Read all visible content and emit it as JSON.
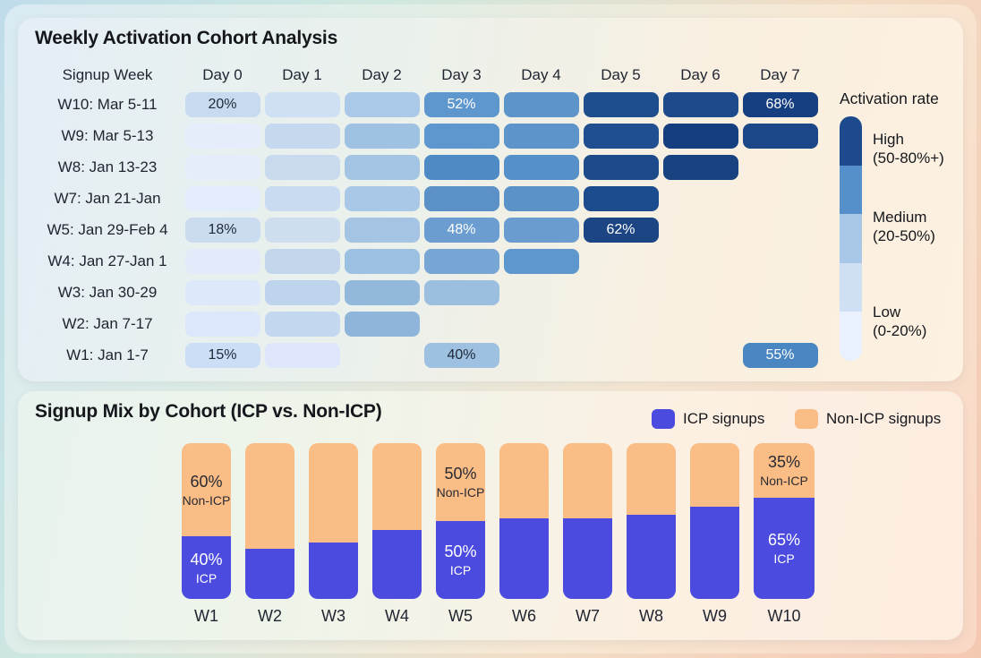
{
  "activation": {
    "title": "Weekly Activation Cohort Analysis",
    "columns": [
      "Signup Week",
      "Day 0",
      "Day 1",
      "Day 2",
      "Day 3",
      "Day 4",
      "Day 5",
      "Day 6",
      "Day 7"
    ],
    "rows": [
      {
        "label": "W10: Mar 5-11",
        "cells": [
          {
            "day": 0,
            "color": "#c8daf0",
            "label": "20%",
            "text": "#1f2937"
          },
          {
            "day": 1,
            "color": "#cfdff4",
            "label": ""
          },
          {
            "day": 2,
            "color": "#aac8e7",
            "label": ""
          },
          {
            "day": 3,
            "color": "#5e97cd",
            "label": "52%",
            "text": "#ffffff"
          },
          {
            "day": 4,
            "color": "#5d94c9",
            "label": ""
          },
          {
            "day": 5,
            "color": "#1e4e8e",
            "label": ""
          },
          {
            "day": 6,
            "color": "#1c4a8b",
            "label": ""
          },
          {
            "day": 7,
            "color": "#153f80",
            "label": "68%",
            "text": "#ffffff"
          }
        ]
      },
      {
        "label": "W9: Mar 5-13",
        "cells": [
          {
            "day": 0,
            "color": "#e5edfb",
            "label": ""
          },
          {
            "day": 1,
            "color": "#c6d8ee",
            "label": ""
          },
          {
            "day": 2,
            "color": "#9fc2e3",
            "label": ""
          },
          {
            "day": 3,
            "color": "#5e97cd",
            "label": ""
          },
          {
            "day": 4,
            "color": "#5d95ca",
            "label": ""
          },
          {
            "day": 5,
            "color": "#1f4f90",
            "label": ""
          },
          {
            "day": 6,
            "color": "#153e80",
            "label": ""
          },
          {
            "day": 7,
            "color": "#1b4789",
            "label": ""
          }
        ]
      },
      {
        "label": "W8: Jan 13-23",
        "cells": [
          {
            "day": 0,
            "color": "#e5edfb",
            "label": ""
          },
          {
            "day": 1,
            "color": "#c9daee",
            "label": ""
          },
          {
            "day": 2,
            "color": "#a3c4e3",
            "label": ""
          },
          {
            "day": 3,
            "color": "#4e8ac4",
            "label": ""
          },
          {
            "day": 4,
            "color": "#5590c8",
            "label": ""
          },
          {
            "day": 5,
            "color": "#1c4a8b",
            "label": ""
          },
          {
            "day": 6,
            "color": "#17427f",
            "label": ""
          }
        ]
      },
      {
        "label": "W7: Jan 21-Jan",
        "cells": [
          {
            "day": 0,
            "color": "#e3ecfa",
            "label": ""
          },
          {
            "day": 1,
            "color": "#c9dbf0",
            "label": ""
          },
          {
            "day": 2,
            "color": "#a9c7e6",
            "label": ""
          },
          {
            "day": 3,
            "color": "#5b91c6",
            "label": ""
          },
          {
            "day": 4,
            "color": "#5b93c8",
            "label": ""
          },
          {
            "day": 5,
            "color": "#1d4c8e",
            "label": ""
          }
        ]
      },
      {
        "label": "W5: Jan 29-Feb 4",
        "cells": [
          {
            "day": 0,
            "color": "#ccdcf0",
            "label": "18%",
            "text": "#1f2937"
          },
          {
            "day": 1,
            "color": "#cfdeef",
            "label": ""
          },
          {
            "day": 2,
            "color": "#a5c3e2",
            "label": ""
          },
          {
            "day": 3,
            "color": "#6b9dd1",
            "label": "48%",
            "text": "#ffffff"
          },
          {
            "day": 4,
            "color": "#6b9cd0",
            "label": ""
          },
          {
            "day": 5,
            "color": "#1b4583",
            "label": "62%",
            "text": "#ffffff"
          }
        ]
      },
      {
        "label": "W4: Jan 27-Jan 1",
        "cells": [
          {
            "day": 0,
            "color": "#e3ebfb",
            "label": ""
          },
          {
            "day": 1,
            "color": "#c3d6ec",
            "label": ""
          },
          {
            "day": 2,
            "color": "#9cc0e2",
            "label": ""
          },
          {
            "day": 3,
            "color": "#77a6d4",
            "label": ""
          },
          {
            "day": 4,
            "color": "#5e97cd",
            "label": ""
          }
        ]
      },
      {
        "label": "W3: Jan 30-29",
        "cells": [
          {
            "day": 0,
            "color": "#dde8fb",
            "label": ""
          },
          {
            "day": 1,
            "color": "#bed4ec",
            "label": ""
          },
          {
            "day": 2,
            "color": "#92b8dc",
            "label": ""
          },
          {
            "day": 3,
            "color": "#9cbfe0",
            "label": ""
          }
        ]
      },
      {
        "label": "W2: Jan 7-17",
        "cells": [
          {
            "day": 0,
            "color": "#dce7fb",
            "label": ""
          },
          {
            "day": 1,
            "color": "#c3d7ee",
            "label": ""
          },
          {
            "day": 2,
            "color": "#8fb6da",
            "label": ""
          }
        ]
      },
      {
        "label": "W1: Jan 1-7",
        "cells": [
          {
            "day": 0,
            "color": "#ccddf6",
            "label": "15%",
            "text": "#1f2937"
          },
          {
            "day": 1,
            "color": "#dde6fb",
            "label": ""
          },
          {
            "day": 3,
            "color": "#9ec0e1",
            "label": "40%",
            "text": "#1f2937"
          },
          {
            "day": 7,
            "color": "#4a86c2",
            "label": "55%",
            "text": "#ffffff"
          }
        ]
      }
    ],
    "legend": {
      "title": "Activation rate",
      "segments": [
        "#1c4a8c",
        "#5590ca",
        "#a9c8e8",
        "#cfe0f4",
        "#e8f1fd"
      ],
      "levels": [
        {
          "name": "High",
          "range": "(50-80%+)"
        },
        {
          "name": "Medium",
          "range": "(20-50%)"
        },
        {
          "name": "Low",
          "range": "(0-20%)"
        }
      ]
    }
  },
  "signup": {
    "title": "Signup Mix by Cohort (ICP vs. Non-ICP)",
    "icp_color": "#4b4be0",
    "non_icp_color": "#f9bd85",
    "icp_suffix": "ICP",
    "non_icp_suffix": "Non-ICP",
    "legend": [
      {
        "label": "ICP signups",
        "color": "#4b4be0"
      },
      {
        "label": "Non-ICP signups",
        "color": "#f9bd85"
      }
    ],
    "bars": [
      {
        "week": "W1",
        "icp": 40,
        "non_icp": 60,
        "show_labels": true
      },
      {
        "week": "W2",
        "icp": 32,
        "non_icp": 68,
        "show_labels": false
      },
      {
        "week": "W3",
        "icp": 36,
        "non_icp": 64,
        "show_labels": false
      },
      {
        "week": "W4",
        "icp": 44,
        "non_icp": 56,
        "show_labels": false
      },
      {
        "week": "W5",
        "icp": 50,
        "non_icp": 50,
        "show_labels": true
      },
      {
        "week": "W6",
        "icp": 52,
        "non_icp": 48,
        "show_labels": false
      },
      {
        "week": "W7",
        "icp": 52,
        "non_icp": 48,
        "show_labels": false
      },
      {
        "week": "W8",
        "icp": 54,
        "non_icp": 46,
        "show_labels": false
      },
      {
        "week": "W9",
        "icp": 59,
        "non_icp": 41,
        "show_labels": false
      },
      {
        "week": "W10",
        "icp": 65,
        "non_icp": 35,
        "show_labels": true
      }
    ]
  },
  "chart_data": [
    {
      "type": "heatmap",
      "title": "Weekly Activation Cohort Analysis",
      "x_labels": [
        "Day 0",
        "Day 1",
        "Day 2",
        "Day 3",
        "Day 4",
        "Day 5",
        "Day 6",
        "Day 7"
      ],
      "y_labels": [
        "W10: Mar 5-11",
        "W9: Mar 5-13",
        "W8: Jan 13-23",
        "W7: Jan 21-Jan",
        "W5: Jan 29-Feb 4",
        "W4: Jan 27-Jan 1",
        "W3: Jan 30-29",
        "W2: Jan 7-17",
        "W1: Jan 1-7"
      ],
      "shown_values": [
        [
          "20%",
          null,
          null,
          "52%",
          null,
          null,
          null,
          "68%"
        ],
        [
          null,
          null,
          null,
          null,
          null,
          null,
          null,
          null
        ],
        [
          null,
          null,
          null,
          null,
          null,
          null,
          null,
          null
        ],
        [
          null,
          null,
          null,
          null,
          null,
          null,
          null,
          null
        ],
        [
          "18%",
          null,
          null,
          "48%",
          null,
          "62%",
          null,
          null
        ],
        [
          null,
          null,
          null,
          null,
          null,
          null,
          null,
          null
        ],
        [
          null,
          null,
          null,
          null,
          null,
          null,
          null,
          null
        ],
        [
          null,
          null,
          null,
          null,
          null,
          null,
          null,
          null
        ],
        [
          "15%",
          null,
          null,
          "40%",
          null,
          null,
          null,
          "55%"
        ]
      ],
      "intensity_0to4": [
        [
          1,
          1,
          2,
          3,
          3,
          4,
          4,
          4
        ],
        [
          0,
          1,
          2,
          3,
          3,
          4,
          4,
          4
        ],
        [
          0,
          1,
          2,
          3,
          3,
          4,
          4,
          null
        ],
        [
          0,
          1,
          2,
          3,
          3,
          4,
          null,
          null
        ],
        [
          1,
          1,
          2,
          3,
          3,
          4,
          null,
          null
        ],
        [
          0,
          1,
          2,
          3,
          3,
          null,
          null,
          null
        ],
        [
          0,
          1,
          2,
          2,
          null,
          null,
          null,
          null
        ],
        [
          0,
          1,
          2,
          null,
          null,
          null,
          null,
          null
        ],
        [
          1,
          0,
          null,
          2,
          null,
          null,
          null,
          3
        ]
      ],
      "legend": {
        "title": "Activation rate",
        "levels": [
          "High (50-80%+)",
          "Medium (20-50%)",
          "Low (0-20%)"
        ]
      }
    },
    {
      "type": "bar",
      "stacked": true,
      "unit": "%",
      "title": "Signup Mix by Cohort (ICP vs. Non-ICP)",
      "categories": [
        "W1",
        "W2",
        "W3",
        "W4",
        "W5",
        "W6",
        "W7",
        "W8",
        "W9",
        "W10"
      ],
      "series": [
        {
          "name": "ICP signups",
          "values": [
            40,
            32,
            36,
            44,
            50,
            52,
            52,
            54,
            59,
            65
          ]
        },
        {
          "name": "Non-ICP signups",
          "values": [
            60,
            68,
            64,
            56,
            50,
            48,
            48,
            46,
            41,
            35
          ]
        }
      ],
      "value_labels_shown_on": [
        "W1",
        "W5",
        "W10"
      ],
      "ylim": [
        0,
        100
      ],
      "legend_position": "top-right"
    }
  ]
}
